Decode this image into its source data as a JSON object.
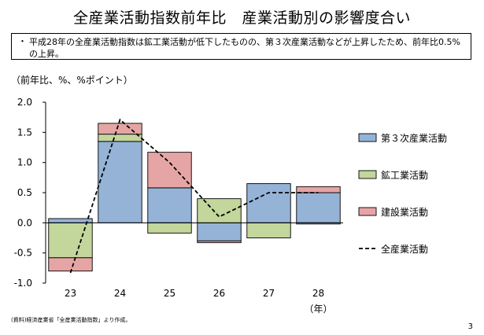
{
  "page": {
    "title": "全産業活動指数前年比　産業活動別の影響度合い",
    "bullet": "・",
    "note": "平成28年の全産業活動指数は鉱工業活動が低下したものの、第３次産業活動などが上昇したため、前年比0.5%の上昇。",
    "unit_label": "（前年比、%、%ポイント）",
    "source": "(資料)経済産業省「全産業活動指数」より作成。",
    "page_number": "3"
  },
  "chart_data": {
    "type": "bar",
    "stacked": true,
    "categories": [
      "23",
      "24",
      "25",
      "26",
      "27",
      "28"
    ],
    "xlabel": "（年）",
    "ylabel": "",
    "ylim": [
      -1.0,
      2.0
    ],
    "yticks": [
      "2.0",
      "1.5",
      "1.0",
      "0.5",
      "0.0",
      "-0.5",
      "-1.0"
    ],
    "grid": false,
    "legend_position": "right",
    "series": [
      {
        "name": "第３次産業活動",
        "type": "bar",
        "color": "#95b3d7",
        "values": [
          0.07,
          1.35,
          0.58,
          -0.3,
          0.65,
          0.5
        ]
      },
      {
        "name": "鉱工業活動",
        "type": "bar",
        "color": "#c3d69b",
        "values": [
          -0.58,
          0.12,
          -0.17,
          0.4,
          -0.25,
          -0.02
        ]
      },
      {
        "name": "建設業活動",
        "type": "bar",
        "color": "#e6a5a5",
        "values": [
          -0.22,
          0.18,
          0.59,
          -0.03,
          0.0,
          0.1
        ]
      },
      {
        "name": "全産業活動",
        "type": "line",
        "color": "#000000",
        "dash": true,
        "values": [
          -0.83,
          1.71,
          1.0,
          0.1,
          0.5,
          0.5
        ]
      }
    ]
  }
}
